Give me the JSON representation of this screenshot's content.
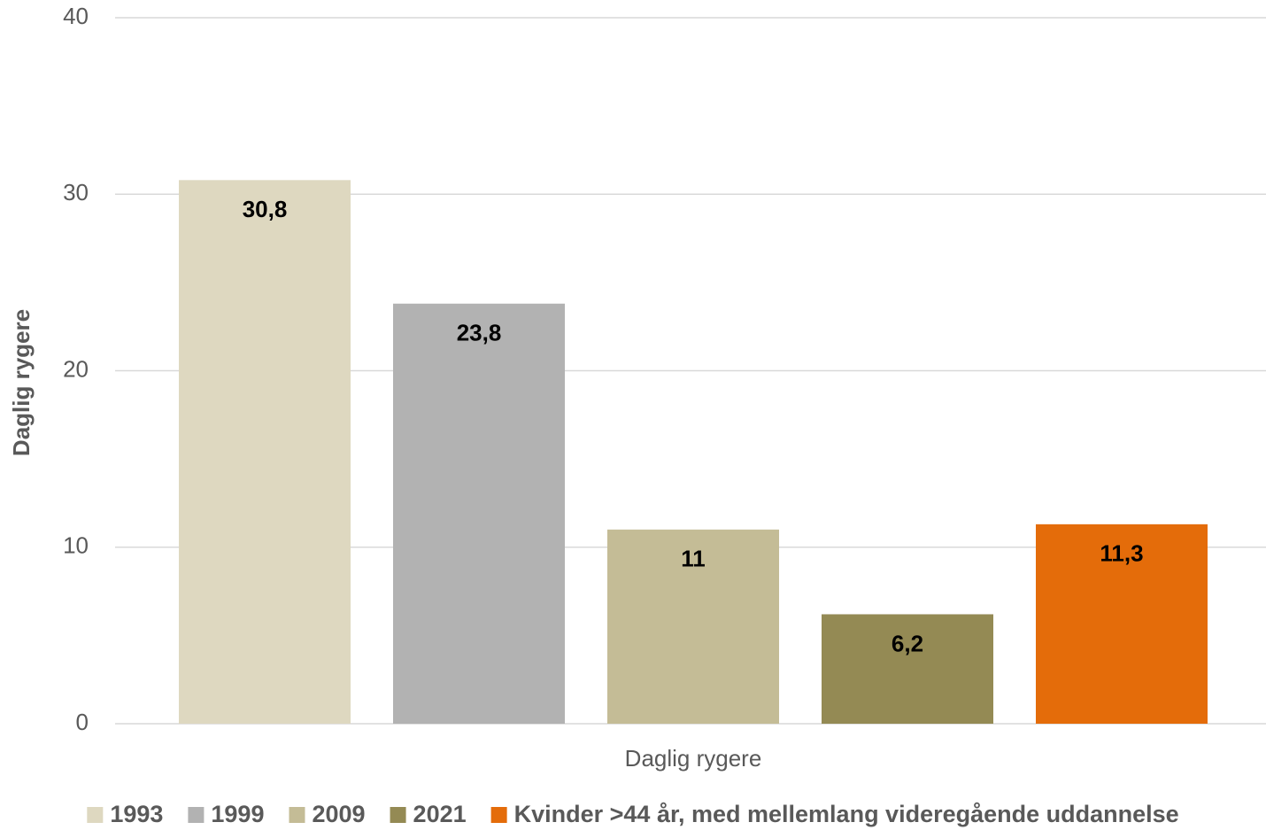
{
  "chart_data": {
    "type": "bar",
    "categories": [
      "Daglig rygere"
    ],
    "y_label": "Daglig rygere",
    "ylim": [
      0,
      40
    ],
    "yticks": [
      0,
      10,
      20,
      30,
      40
    ],
    "grid": true,
    "legend": "bottom",
    "series": [
      {
        "name": "1993",
        "color": "#ded8c0",
        "values": [
          30.8
        ],
        "value_labels": [
          "30,8"
        ]
      },
      {
        "name": "1999",
        "color": "#b2b2b2",
        "values": [
          23.8
        ],
        "value_labels": [
          "23,8"
        ]
      },
      {
        "name": "2009",
        "color": "#c4bc96",
        "values": [
          11
        ]
      },
      {
        "name": "2021",
        "color": "#948a54",
        "values": [
          6.2
        ],
        "value_labels": [
          "6,2"
        ]
      },
      {
        "name": "Kvinder >44 år, med mellemlang videregående uddannelse",
        "color": "#e46c0a",
        "values": [
          11.3
        ],
        "value_labels": [
          "11,3"
        ]
      }
    ]
  }
}
